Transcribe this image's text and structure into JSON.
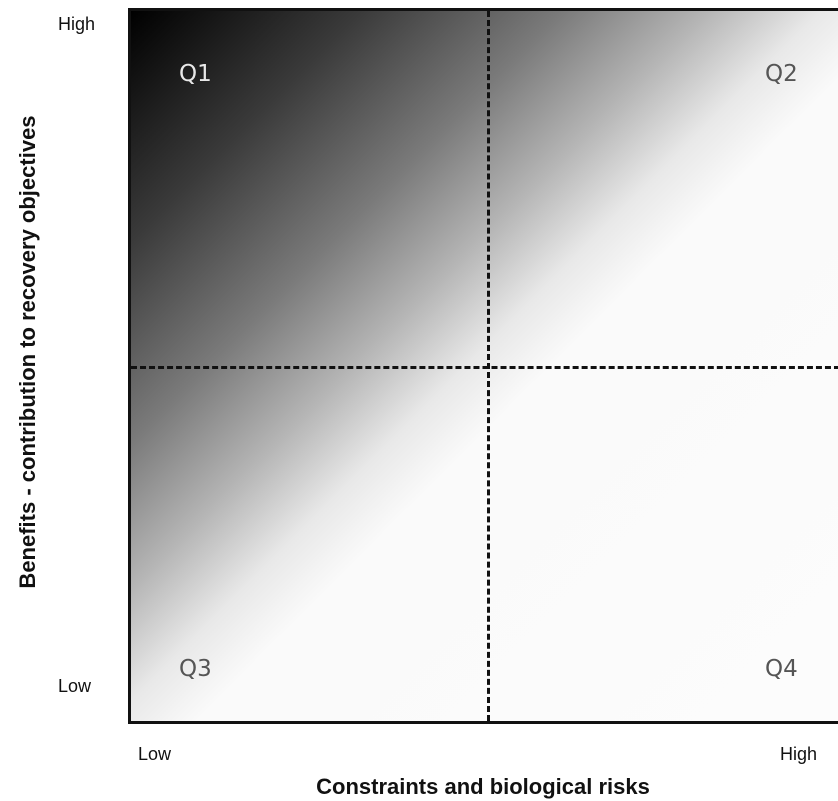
{
  "axes": {
    "y": {
      "title": "Benefits - contribution to recovery objectives",
      "high_label": "High",
      "low_label": "Low"
    },
    "x": {
      "title": "Constraints and biological risks",
      "high_label": "High",
      "low_label": "Low"
    }
  },
  "quadrants": [
    {
      "label": "Q1"
    },
    {
      "label": "Q2"
    },
    {
      "label": "Q3"
    },
    {
      "label": "Q4"
    }
  ],
  "colors": {
    "gradient_dark": "#000000",
    "gradient_light": "#fcfcfc",
    "divider": "#111111"
  }
}
